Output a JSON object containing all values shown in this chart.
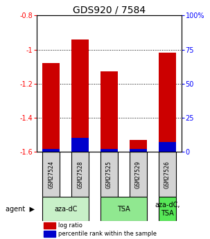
{
  "title": "GDS920 / 7584",
  "samples": [
    "GSM27524",
    "GSM27528",
    "GSM27525",
    "GSM27529",
    "GSM27526"
  ],
  "log_ratios": [
    -1.08,
    -0.94,
    -1.13,
    -1.53,
    -1.02
  ],
  "percentile_ranks": [
    2,
    10,
    2,
    2,
    7
  ],
  "ylim_left": [
    -1.6,
    -0.8
  ],
  "ylim_right": [
    0,
    100
  ],
  "yticks_left": [
    -1.6,
    -1.4,
    -1.2,
    -1.0,
    -0.8
  ],
  "yticks_right": [
    0,
    25,
    50,
    75,
    100
  ],
  "ytick_labels_left": [
    "-1.6",
    "-1.4",
    "-1.2",
    "-1",
    "-0.8"
  ],
  "ytick_labels_right": [
    "0",
    "25",
    "50",
    "75",
    "100%"
  ],
  "groups": [
    {
      "label": "aza-dC",
      "samples": [
        "GSM27524",
        "GSM27528"
      ],
      "color": "#c8f0c8"
    },
    {
      "label": "TSA",
      "samples": [
        "GSM27525",
        "GSM27529"
      ],
      "color": "#90e890"
    },
    {
      "label": "aza-dC,\nTSA",
      "samples": [
        "GSM27526"
      ],
      "color": "#58e858"
    }
  ],
  "bar_color_red": "#cc0000",
  "bar_color_blue": "#0000cc",
  "bar_width": 0.6,
  "legend_red": "log ratio",
  "legend_blue": "percentile rank within the sample",
  "agent_label": "agent",
  "title_fontsize": 10,
  "tick_fontsize": 7,
  "sample_fontsize": 6,
  "group_fontsize": 7,
  "legend_fontsize": 6
}
